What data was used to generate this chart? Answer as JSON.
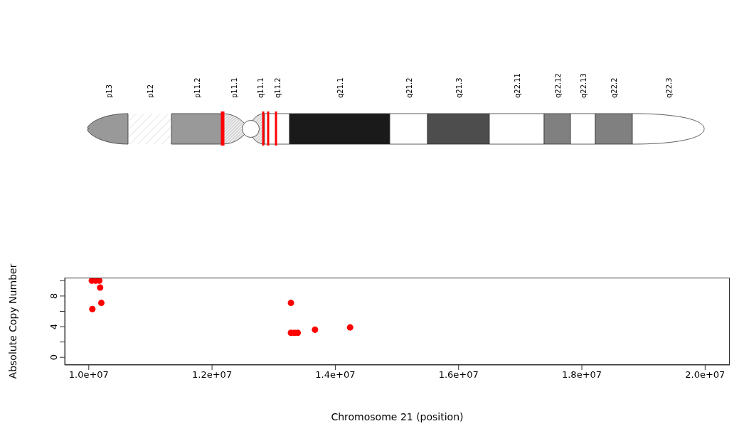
{
  "chart_data": {
    "type": "scatter",
    "xlabel": "Chromosome 21 (position)",
    "ylabel": "Absolute Copy Number",
    "annotations": [
      "p13",
      "p12",
      "p11.2",
      "p11.1",
      "q11.1",
      "q11.2",
      "q21.1",
      "q21.2",
      "q21.3",
      "q22.11",
      "q22.12",
      "q22.13",
      "q22.2",
      "q22.3"
    ],
    "series": [
      {
        "color": "#ff0000",
        "x": [
          10050000,
          10110000,
          10170000,
          10185000,
          10204000,
          10058000,
          13280000,
          13280000,
          13335000,
          13390000,
          13670000,
          14240000
        ],
        "values": [
          10,
          10,
          10,
          9.1,
          7.1,
          6.3,
          7.1,
          3.2,
          3.2,
          3.2,
          3.6,
          3.9
        ]
      }
    ],
    "xlim": [
      9610000,
      20400000
    ],
    "xticks": [
      {
        "value": 10000000,
        "label": "1.0e+07"
      },
      {
        "value": 12000000,
        "label": "1.2e+07"
      },
      {
        "value": 14000000,
        "label": "1.4e+07"
      },
      {
        "value": 16000000,
        "label": "1.6e+07"
      },
      {
        "value": 18000000,
        "label": "1.8e+07"
      },
      {
        "value": 20000000,
        "label": "2.0e+07"
      }
    ],
    "ylim": [
      -1,
      10.4
    ],
    "yticks": [
      0,
      {
        "value": 2,
        "label": null
      },
      4,
      {
        "value": 6,
        "label": null
      },
      8,
      {
        "value": 10,
        "label": null
      }
    ],
    "marker": "circle",
    "grid": false,
    "legend": false
  }
}
